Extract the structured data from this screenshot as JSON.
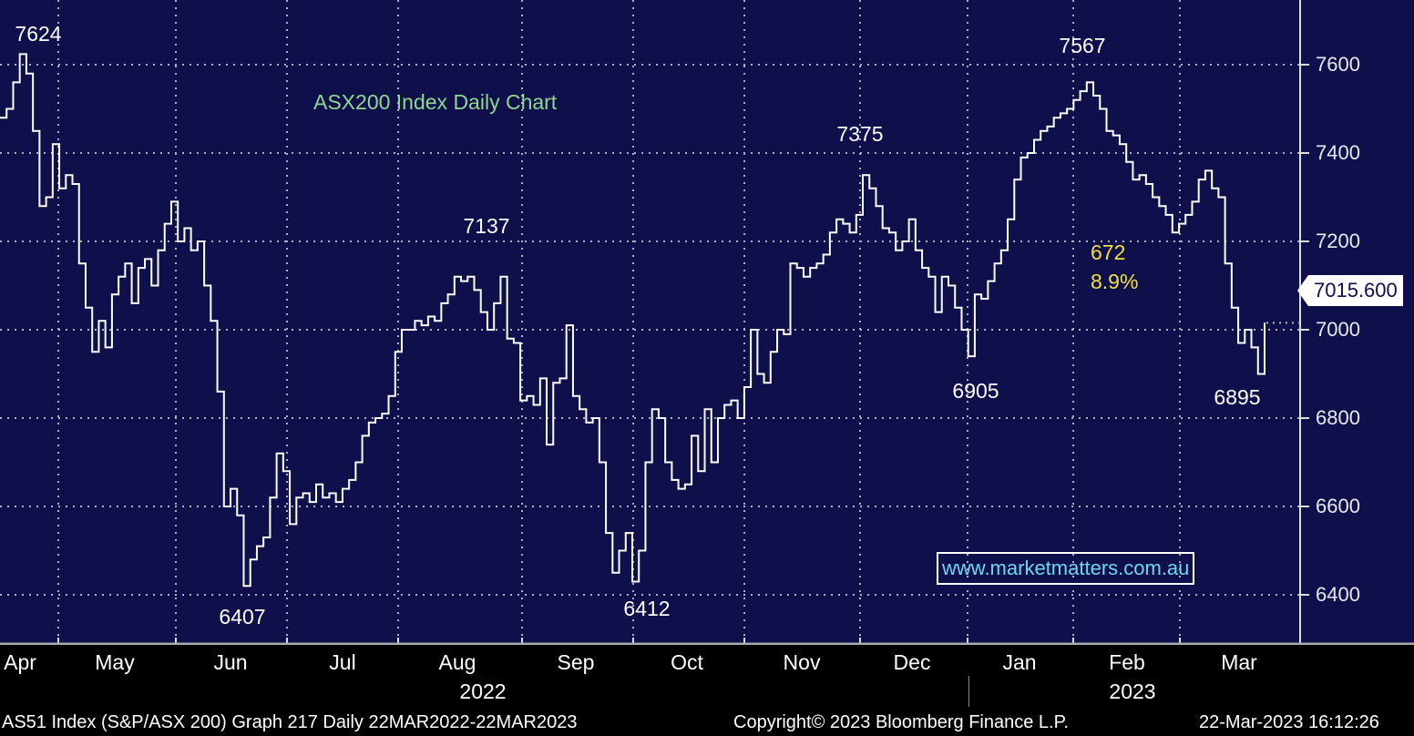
{
  "chart_data": {
    "type": "line",
    "title": "ASX200 Index Daily Chart",
    "ylim": [
      6320,
      7760
    ],
    "y_ticks": [
      6400,
      6600,
      6800,
      7000,
      7200,
      7400,
      7600
    ],
    "x_ticks": [
      "Apr",
      "May",
      "Jun",
      "Jul",
      "Aug",
      "Sep",
      "Oct",
      "Nov",
      "Dec",
      "Jan",
      "Feb",
      "Mar"
    ],
    "years": [
      "2022",
      "2023"
    ],
    "grid": true,
    "last_value": "7015.600",
    "series": [
      {
        "name": "AS51 Index",
        "values": [
          7480,
          7500,
          7560,
          7624,
          7580,
          7450,
          7280,
          7300,
          7420,
          7320,
          7350,
          7330,
          7150,
          7050,
          6950,
          7020,
          6960,
          7080,
          7120,
          7150,
          7060,
          7140,
          7160,
          7100,
          7180,
          7240,
          7290,
          7200,
          7230,
          7180,
          7200,
          7100,
          7020,
          6860,
          6600,
          6640,
          6580,
          6420,
          6480,
          6510,
          6530,
          6620,
          6720,
          6680,
          6560,
          6620,
          6630,
          6610,
          6650,
          6620,
          6630,
          6610,
          6640,
          6660,
          6700,
          6760,
          6790,
          6800,
          6810,
          6850,
          6950,
          7000,
          7000,
          7020,
          7010,
          7030,
          7020,
          7060,
          7080,
          7120,
          7110,
          7120,
          7090,
          7040,
          7000,
          7060,
          7120,
          6980,
          6970,
          6840,
          6850,
          6830,
          6890,
          6740,
          6880,
          6890,
          7010,
          6850,
          6820,
          6790,
          6800,
          6700,
          6540,
          6450,
          6500,
          6540,
          6430,
          6500,
          6700,
          6820,
          6800,
          6700,
          6660,
          6640,
          6650,
          6760,
          6680,
          6820,
          6700,
          6800,
          6830,
          6840,
          6800,
          6870,
          7000,
          6900,
          6880,
          6950,
          7000,
          6990,
          7150,
          7140,
          7120,
          7140,
          7150,
          7170,
          7220,
          7250,
          7240,
          7220,
          7260,
          7350,
          7320,
          7280,
          7230,
          7220,
          7180,
          7200,
          7250,
          7180,
          7140,
          7120,
          7040,
          7120,
          7100,
          7050,
          7000,
          6940,
          7080,
          7070,
          7110,
          7150,
          7180,
          7250,
          7340,
          7390,
          7400,
          7430,
          7450,
          7460,
          7480,
          7490,
          7500,
          7520,
          7540,
          7560,
          7530,
          7500,
          7450,
          7440,
          7420,
          7380,
          7340,
          7350,
          7330,
          7300,
          7280,
          7260,
          7220,
          7240,
          7260,
          7290,
          7340,
          7360,
          7320,
          7300,
          7150,
          7050,
          6970,
          7000,
          6960,
          6900,
          7015
        ]
      }
    ],
    "annotations": [
      "7624",
      "7137",
      "6407",
      "6412",
      "7375",
      "6905",
      "7567",
      "6895"
    ],
    "move": {
      "points": "672",
      "percent": "8.9%"
    }
  },
  "watermark": "www.marketmatters.com.au",
  "footer": {
    "left": "AS51 Index (S&P/ASX 200) Graph 217  Daily 22MAR2022-22MAR2023",
    "center": "Copyright© 2023 Bloomberg Finance L.P.",
    "right": "22-Mar-2023 16:12:26"
  },
  "colors": {
    "background": "#0f0f4b",
    "line": "#ffffff",
    "title": "#8fd88f",
    "highlight": "#f0e040"
  }
}
